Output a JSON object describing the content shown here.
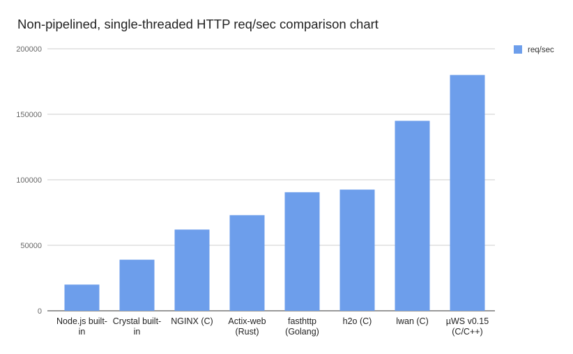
{
  "chart_data": {
    "type": "bar",
    "title": "Non-pipelined, single-threaded HTTP req/sec comparison chart",
    "xlabel": "",
    "ylabel": "",
    "categories": [
      [
        "Node.js built-",
        "in"
      ],
      [
        "Crystal built-",
        "in"
      ],
      [
        "NGINX (C)"
      ],
      [
        "Actix-web",
        "(Rust)"
      ],
      [
        "fasthttp",
        "(Golang)"
      ],
      [
        "h2o (C)"
      ],
      [
        "lwan (C)"
      ],
      [
        "µWS v0.15",
        "(C/C++)"
      ]
    ],
    "series": [
      {
        "name": "req/sec",
        "color": "#6d9eeb",
        "values": [
          20000,
          39000,
          62000,
          73000,
          90500,
          92500,
          145000,
          180000
        ]
      }
    ],
    "yticks": [
      "0",
      "50000",
      "100000",
      "150000",
      "200000"
    ],
    "ylim": [
      0,
      200000
    ],
    "grid": true,
    "legend_position": "top-right"
  }
}
